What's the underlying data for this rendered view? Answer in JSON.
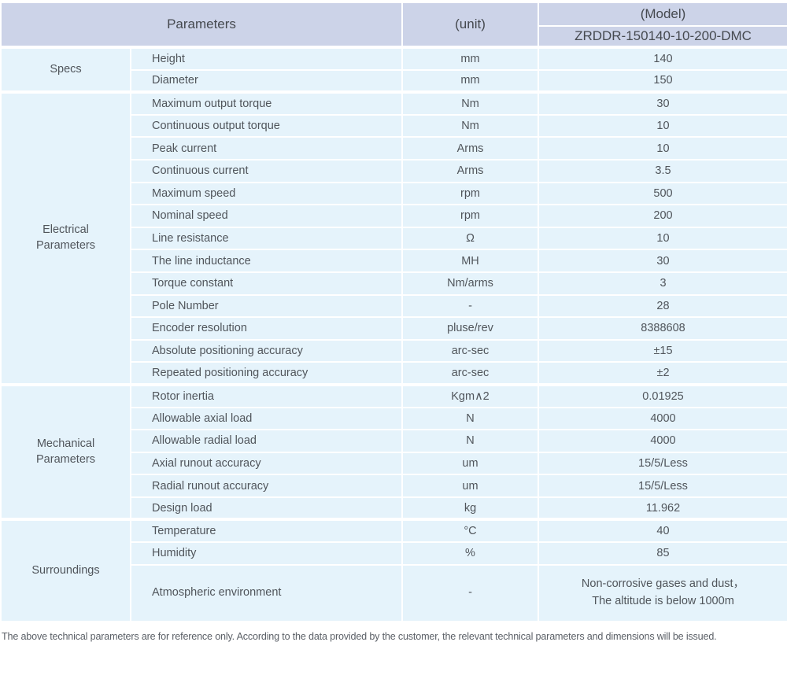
{
  "header": {
    "parameters_label": "Parameters",
    "unit_label": "(unit)",
    "model_label": "(Model)",
    "model_value": "ZRDDR-150140-10-200-DMC"
  },
  "groups": [
    {
      "name": "Specs",
      "rows": [
        {
          "param": "Height",
          "unit": "mm",
          "value": "140"
        },
        {
          "param": "Diameter",
          "unit": "mm",
          "value": "150"
        }
      ]
    },
    {
      "name": "Electrical\nParameters",
      "rows": [
        {
          "param": "Maximum output torque",
          "unit": "Nm",
          "value": "30"
        },
        {
          "param": "Continuous output torque",
          "unit": "Nm",
          "value": "10"
        },
        {
          "param": "Peak current",
          "unit": "Arms",
          "value": "10"
        },
        {
          "param": "Continuous current",
          "unit": "Arms",
          "value": "3.5"
        },
        {
          "param": "Maximum speed",
          "unit": "rpm",
          "value": "500"
        },
        {
          "param": "Nominal speed",
          "unit": "rpm",
          "value": "200"
        },
        {
          "param": "Line resistance",
          "unit": "Ω",
          "value": "10"
        },
        {
          "param": "The line inductance",
          "unit": "MH",
          "value": "30"
        },
        {
          "param": "Torque constant",
          "unit": "Nm/arms",
          "value": "3"
        },
        {
          "param": "Pole Number",
          "unit": "-",
          "value": "28"
        },
        {
          "param": "Encoder resolution",
          "unit": "pluse/rev",
          "value": "8388608"
        },
        {
          "param": "Absolute positioning accuracy",
          "unit": "arc-sec",
          "value": "±15"
        },
        {
          "param": "Repeated positioning accuracy",
          "unit": "arc-sec",
          "value": "±2"
        }
      ]
    },
    {
      "name": "Mechanical\nParameters",
      "rows": [
        {
          "param": "Rotor inertia",
          "unit": "Kgm∧2",
          "value": "0.01925"
        },
        {
          "param": "Allowable axial load",
          "unit": "N",
          "value": "4000"
        },
        {
          "param": "Allowable radial load",
          "unit": "N",
          "value": "4000"
        },
        {
          "param": "Axial runout accuracy",
          "unit": "um",
          "value": "15/5/Less"
        },
        {
          "param": "Radial runout accuracy",
          "unit": "um",
          "value": "15/5/Less"
        },
        {
          "param": "Design load",
          "unit": "kg",
          "value": "11.962"
        }
      ]
    },
    {
      "name": "Surroundings",
      "rows": [
        {
          "param": "Temperature",
          "unit": "°C",
          "value": "40"
        },
        {
          "param": "Humidity",
          "unit": "%",
          "value": "85"
        },
        {
          "param": "Atmospheric environment",
          "unit": "-",
          "value": "Non-corrosive gases and dust，\nThe altitude is below 1000m"
        }
      ]
    }
  ],
  "footer": {
    "note": "The above technical parameters are for reference only. According to the data provided by the customer, the relevant technical parameters and dimensions will be issued."
  },
  "colors": {
    "header_bg": "#ccd3e8",
    "cell_bg": "#e5f3fb",
    "text": "#50555b"
  }
}
